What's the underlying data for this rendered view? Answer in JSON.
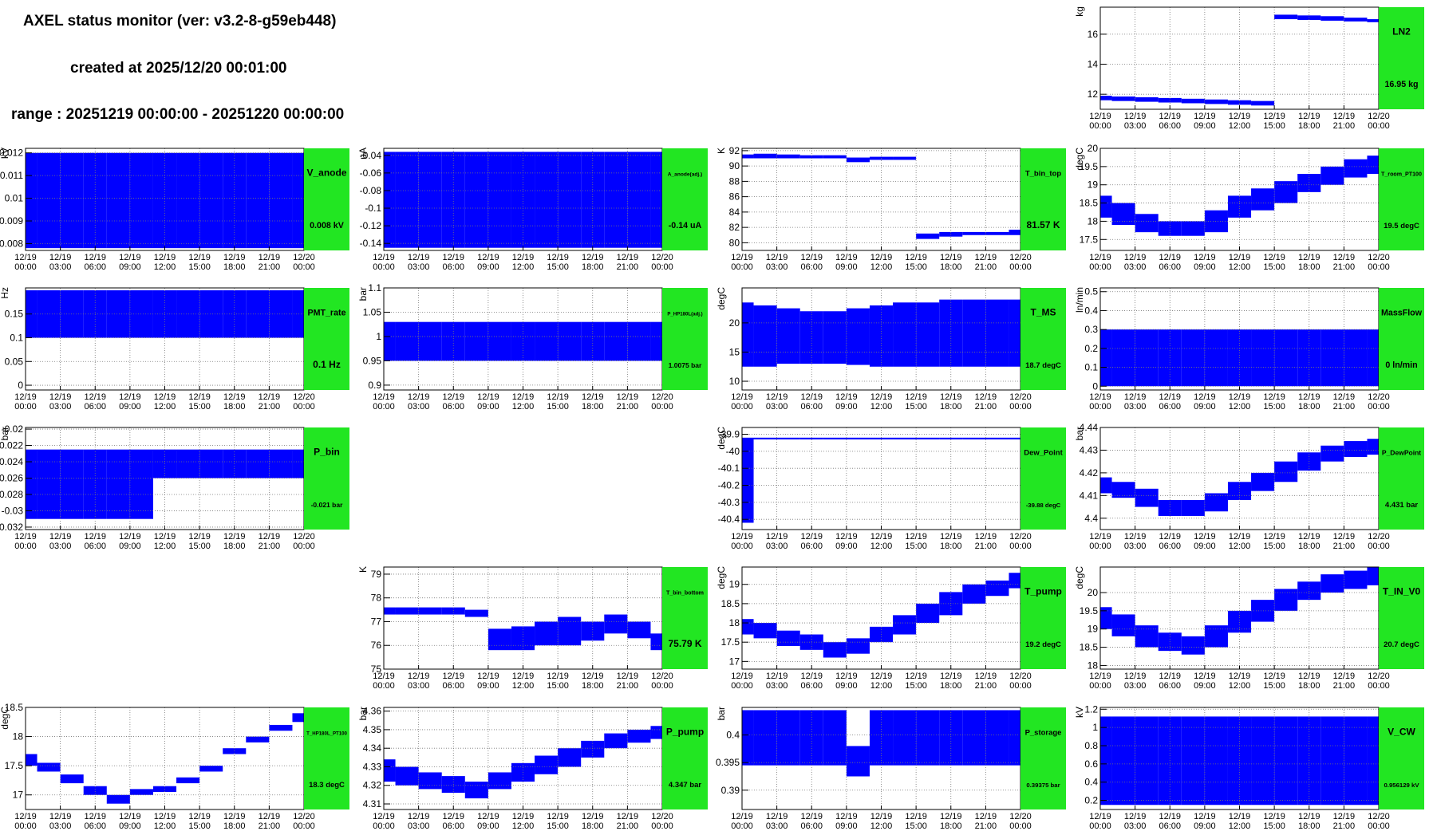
{
  "header": {
    "title": "AXEL status monitor (ver: v3.2-8-g59eb448)",
    "created": "created at 2025/12/20 00:01:00",
    "range": "range : 20251219 00:00:00 - 20251220 00:00:00"
  },
  "time_axis": {
    "xlim": [
      0,
      24
    ],
    "xticks": [
      {
        "value": 0,
        "label": "12/19 00:00"
      },
      {
        "value": 3,
        "label": "12/19 03:00"
      },
      {
        "value": 6,
        "label": "12/19 06:00"
      },
      {
        "value": 9,
        "label": "12/19 09:00"
      },
      {
        "value": 12,
        "label": "12/19 12:00"
      },
      {
        "value": 15,
        "label": "12/19 15:00"
      },
      {
        "value": 18,
        "label": "12/19 18:00"
      },
      {
        "value": 21,
        "label": "12/19 21:00"
      },
      {
        "value": 24,
        "label": "12/20 00:00"
      }
    ]
  },
  "chart_data": [
    {
      "type": "band",
      "title": "LN2",
      "value_label": "16.95 kg",
      "unit": "kg",
      "color": "#0000ff",
      "ylim": [
        11,
        17.8
      ],
      "yticks": [
        12,
        14,
        16
      ],
      "grid": true,
      "x": [
        0,
        2,
        4,
        6,
        8,
        10,
        12,
        14,
        16,
        18,
        20,
        22,
        24
      ],
      "low": [
        11.6,
        11.55,
        11.5,
        11.45,
        11.4,
        11.35,
        11.3,
        11.25,
        17.0,
        16.95,
        16.9,
        16.85,
        16.8
      ],
      "high": [
        11.9,
        11.85,
        11.8,
        11.75,
        11.7,
        11.65,
        11.6,
        11.55,
        17.3,
        17.25,
        17.2,
        17.1,
        17.0
      ]
    },
    {
      "type": "band",
      "title": "V_anode",
      "value_label": "0.008 kV",
      "unit": "kV",
      "color": "#0000ff",
      "ylim": [
        0.0077,
        0.0122
      ],
      "yticks": [
        0.008,
        0.009,
        0.01,
        0.011,
        0.012
      ],
      "grid": true,
      "x": [
        0,
        2,
        4,
        6,
        8,
        10,
        12,
        14,
        16,
        18,
        20,
        22,
        24
      ],
      "low": [
        0.0078,
        0.0078,
        0.0078,
        0.0078,
        0.0078,
        0.0078,
        0.0078,
        0.0078,
        0.0078,
        0.0078,
        0.0078,
        0.0078,
        0.0078
      ],
      "high": [
        0.012,
        0.012,
        0.012,
        0.012,
        0.012,
        0.012,
        0.012,
        0.012,
        0.012,
        0.012,
        0.012,
        0.012,
        0.012
      ]
    },
    {
      "type": "band",
      "title": "A_anode(adj.)",
      "value_label": "-0.14 uA",
      "unit": "uA",
      "color": "#0000ff",
      "ylim": [
        -0.148,
        -0.032
      ],
      "yticks": [
        -0.14,
        -0.12,
        -0.1,
        -0.08,
        -0.06,
        -0.04
      ],
      "grid": true,
      "x": [
        0,
        2,
        4,
        6,
        8,
        10,
        12,
        14,
        16,
        18,
        20,
        22,
        24
      ],
      "low": [
        -0.145,
        -0.145,
        -0.145,
        -0.145,
        -0.145,
        -0.145,
        -0.145,
        -0.145,
        -0.145,
        -0.145,
        -0.145,
        -0.145,
        -0.145
      ],
      "high": [
        -0.036,
        -0.036,
        -0.036,
        -0.036,
        -0.036,
        -0.036,
        -0.036,
        -0.036,
        -0.036,
        -0.036,
        -0.036,
        -0.036,
        -0.036
      ]
    },
    {
      "type": "band",
      "title": "T_bin_top",
      "value_label": "81.57 K",
      "unit": "K",
      "color": "#0000ff",
      "ylim": [
        79,
        92.3
      ],
      "yticks": [
        80,
        82,
        84,
        86,
        88,
        90,
        92
      ],
      "grid": true,
      "x": [
        0,
        2,
        4,
        6,
        8,
        10,
        12,
        14,
        16,
        18,
        20,
        22,
        24
      ],
      "low": [
        91,
        91,
        91,
        91,
        91,
        90.5,
        90.8,
        90.8,
        80.5,
        80.8,
        81,
        81,
        81
      ],
      "high": [
        91.5,
        91.6,
        91.5,
        91.4,
        91.4,
        91.1,
        91.2,
        91.2,
        81.2,
        81.4,
        81.4,
        81.4,
        81.7
      ]
    },
    {
      "type": "band",
      "title": "T_room_PT100",
      "value_label": "19.5 degC",
      "unit": "degC",
      "color": "#0000ff",
      "ylim": [
        17.2,
        20
      ],
      "yticks": [
        17.5,
        18,
        18.5,
        19,
        19.5,
        20
      ],
      "grid": true,
      "x": [
        0,
        2,
        4,
        6,
        8,
        10,
        12,
        14,
        16,
        18,
        20,
        22,
        24
      ],
      "low": [
        18.1,
        17.9,
        17.7,
        17.6,
        17.6,
        17.7,
        18.1,
        18.3,
        18.5,
        18.8,
        19.0,
        19.2,
        19.3
      ],
      "high": [
        18.7,
        18.5,
        18.2,
        18.0,
        18.0,
        18.3,
        18.7,
        18.9,
        19.1,
        19.3,
        19.5,
        19.7,
        19.8
      ]
    },
    {
      "type": "band",
      "title": "PMT_rate",
      "value_label": "0.1 Hz",
      "unit": "Hz",
      "color": "#0000ff",
      "ylim": [
        -0.01,
        0.205
      ],
      "yticks": [
        0,
        0.05,
        0.1,
        0.15
      ],
      "grid": true,
      "x": [
        0,
        2,
        4,
        6,
        8,
        10,
        12,
        14,
        16,
        18,
        20,
        22,
        24
      ],
      "low": [
        0.1,
        0.1,
        0.1,
        0.1,
        0.1,
        0.1,
        0.1,
        0.1,
        0.1,
        0.1,
        0.1,
        0.1,
        0.1
      ],
      "high": [
        0.2,
        0.2,
        0.2,
        0.2,
        0.2,
        0.2,
        0.2,
        0.2,
        0.2,
        0.2,
        0.2,
        0.2,
        0.2
      ]
    },
    {
      "type": "band",
      "title": "P_HP180L(adj.)",
      "value_label": "1.0075 bar",
      "unit": "bar",
      "color": "#0000ff",
      "ylim": [
        0.89,
        1.1
      ],
      "yticks": [
        0.9,
        0.95,
        1,
        1.05,
        1.1
      ],
      "grid": true,
      "x": [
        0,
        2,
        4,
        6,
        8,
        10,
        12,
        14,
        16,
        18,
        20,
        22,
        24
      ],
      "low": [
        0.95,
        0.95,
        0.95,
        0.95,
        0.95,
        0.95,
        0.95,
        0.95,
        0.95,
        0.95,
        0.95,
        0.95,
        0.95
      ],
      "high": [
        1.03,
        1.03,
        1.03,
        1.03,
        1.03,
        1.03,
        1.03,
        1.03,
        1.03,
        1.03,
        1.03,
        1.03,
        1.03
      ]
    },
    {
      "type": "band",
      "title": "T_MS",
      "value_label": "18.7 degC",
      "unit": "degC",
      "color": "#0000ff",
      "ylim": [
        8.5,
        26
      ],
      "yticks": [
        10,
        15,
        20
      ],
      "grid": true,
      "x": [
        0,
        2,
        4,
        6,
        8,
        10,
        12,
        14,
        16,
        18,
        20,
        22,
        24
      ],
      "low": [
        12.5,
        12.5,
        13,
        13,
        13,
        12.8,
        12.5,
        12.5,
        12.5,
        12.5,
        12.5,
        12.5,
        12.5
      ],
      "high": [
        23.5,
        23,
        22.5,
        22,
        22,
        22.5,
        23,
        23.5,
        23.5,
        24,
        24,
        24,
        24
      ]
    },
    {
      "type": "band",
      "title": "MassFlow",
      "value_label": "0 ln/min",
      "unit": "ln/min",
      "color": "#0000ff",
      "ylim": [
        -0.02,
        0.52
      ],
      "yticks": [
        0,
        0.1,
        0.2,
        0.3,
        0.4,
        0.5
      ],
      "grid": true,
      "x": [
        0,
        2,
        4,
        6,
        8,
        10,
        12,
        14,
        16,
        18,
        20,
        22,
        24
      ],
      "low": [
        0,
        0,
        0,
        0,
        0,
        0,
        0,
        0,
        0,
        0,
        0,
        0,
        0
      ],
      "high": [
        0.3,
        0.3,
        0.3,
        0.3,
        0.3,
        0.3,
        0.3,
        0.3,
        0.3,
        0.3,
        0.3,
        0.3,
        0.3
      ]
    },
    {
      "type": "band",
      "title": "P_bin",
      "value_label": "-0.021 bar",
      "unit": "bar",
      "color": "#0000ff",
      "ylim": [
        -0.0323,
        -0.0198
      ],
      "yticks": [
        -0.032,
        -0.03,
        -0.028,
        -0.026,
        -0.024,
        -0.022,
        -0.02
      ],
      "grid": true,
      "x": [
        0,
        2,
        4,
        6,
        8,
        10,
        12,
        14,
        16,
        18,
        20,
        22,
        24
      ],
      "low": [
        -0.031,
        -0.031,
        -0.031,
        -0.031,
        -0.031,
        -0.031,
        -0.026,
        -0.026,
        -0.026,
        -0.026,
        -0.026,
        -0.026,
        -0.026
      ],
      "high": [
        -0.0225,
        -0.0225,
        -0.0225,
        -0.0225,
        -0.0225,
        -0.0225,
        -0.0225,
        -0.0225,
        -0.0225,
        -0.0225,
        -0.0225,
        -0.0225,
        -0.0225
      ]
    },
    {
      "type": "band",
      "title": "Dew_Point",
      "value_label": "-39.88 degC",
      "unit": "degC",
      "color": "#0000ff",
      "ylim": [
        -40.46,
        -39.86
      ],
      "yticks": [
        -40.4,
        -40.3,
        -40.2,
        -40.1,
        -40,
        -39.9
      ],
      "grid": true,
      "x": [
        0,
        2,
        4,
        6,
        8,
        10,
        12,
        14,
        16,
        18,
        20,
        22,
        24
      ],
      "low": [
        -40.42,
        -39.93,
        -39.93,
        -39.93,
        -39.93,
        -39.93,
        -39.93,
        -39.93,
        -39.93,
        -39.93,
        -39.93,
        -39.93,
        -39.93
      ],
      "high": [
        -39.92,
        -39.92,
        -39.92,
        -39.92,
        -39.92,
        -39.92,
        -39.92,
        -39.92,
        -39.92,
        -39.92,
        -39.92,
        -39.92,
        -39.92
      ]
    },
    {
      "type": "band",
      "title": "P_DewPoint",
      "value_label": "4.431 bar",
      "unit": "bar",
      "color": "#0000ff",
      "ylim": [
        4.395,
        4.44
      ],
      "yticks": [
        4.4,
        4.41,
        4.42,
        4.43,
        4.44
      ],
      "grid": true,
      "x": [
        0,
        2,
        4,
        6,
        8,
        10,
        12,
        14,
        16,
        18,
        20,
        22,
        24
      ],
      "low": [
        4.411,
        4.409,
        4.405,
        4.401,
        4.401,
        4.403,
        4.408,
        4.412,
        4.416,
        4.421,
        4.425,
        4.427,
        4.428
      ],
      "high": [
        4.418,
        4.416,
        4.413,
        4.408,
        4.408,
        4.411,
        4.416,
        4.42,
        4.425,
        4.429,
        4.432,
        4.434,
        4.435
      ]
    },
    {
      "type": "band",
      "title": "T_bin_bottom",
      "value_label": "75.79 K",
      "unit": "K",
      "color": "#0000ff",
      "ylim": [
        75,
        79.3
      ],
      "yticks": [
        75,
        76,
        77,
        78,
        79
      ],
      "grid": true,
      "x": [
        0,
        2,
        4,
        6,
        8,
        10,
        12,
        14,
        16,
        18,
        20,
        22,
        24
      ],
      "low": [
        77.3,
        77.3,
        77.3,
        77.3,
        77.2,
        75.8,
        75.8,
        76.0,
        76.0,
        76.2,
        76.5,
        76.3,
        75.8
      ],
      "high": [
        77.6,
        77.6,
        77.6,
        77.6,
        77.5,
        76.7,
        76.8,
        77.0,
        77.2,
        77.0,
        77.3,
        77.0,
        76.5
      ]
    },
    {
      "type": "band",
      "title": "T_pump",
      "value_label": "19.2 degC",
      "unit": "degC",
      "color": "#0000ff",
      "ylim": [
        16.8,
        19.45
      ],
      "yticks": [
        17,
        17.5,
        18,
        18.5,
        19
      ],
      "grid": true,
      "x": [
        0,
        2,
        4,
        6,
        8,
        10,
        12,
        14,
        16,
        18,
        20,
        22,
        24
      ],
      "low": [
        17.7,
        17.6,
        17.4,
        17.3,
        17.1,
        17.2,
        17.5,
        17.7,
        18.0,
        18.2,
        18.5,
        18.7,
        18.9
      ],
      "high": [
        18.1,
        18.0,
        17.8,
        17.7,
        17.5,
        17.6,
        17.9,
        18.2,
        18.5,
        18.8,
        19.0,
        19.1,
        19.3
      ]
    },
    {
      "type": "band",
      "title": "T_IN_V0",
      "value_label": "20.7 degC",
      "unit": "degC",
      "color": "#0000ff",
      "ylim": [
        17.9,
        20.7
      ],
      "yticks": [
        18,
        18.5,
        19,
        19.5,
        20
      ],
      "grid": true,
      "x": [
        0,
        2,
        4,
        6,
        8,
        10,
        12,
        14,
        16,
        18,
        20,
        22,
        24
      ],
      "low": [
        19.0,
        18.8,
        18.5,
        18.4,
        18.3,
        18.5,
        18.9,
        19.2,
        19.5,
        19.8,
        20.0,
        20.1,
        20.2
      ],
      "high": [
        19.6,
        19.4,
        19.1,
        18.9,
        18.8,
        19.1,
        19.5,
        19.8,
        20.1,
        20.3,
        20.5,
        20.6,
        20.7
      ]
    },
    {
      "type": "band",
      "title": "T_HP180L_PT100",
      "value_label": "18.3 degC",
      "unit": "degC",
      "color": "#0000ff",
      "ylim": [
        16.75,
        18.5
      ],
      "yticks": [
        17,
        17.5,
        18,
        18.5
      ],
      "grid": true,
      "x": [
        0,
        2,
        4,
        6,
        8,
        10,
        12,
        14,
        16,
        18,
        20,
        22,
        24
      ],
      "low": [
        17.5,
        17.4,
        17.2,
        17.0,
        16.85,
        17.0,
        17.05,
        17.2,
        17.4,
        17.7,
        17.9,
        18.1,
        18.25
      ],
      "high": [
        17.7,
        17.55,
        17.35,
        17.15,
        17.0,
        17.1,
        17.15,
        17.3,
        17.5,
        17.8,
        18.0,
        18.2,
        18.4
      ]
    },
    {
      "type": "band",
      "title": "P_pump",
      "value_label": "4.347 bar",
      "unit": "bar",
      "color": "#0000ff",
      "ylim": [
        4.307,
        4.362
      ],
      "yticks": [
        4.31,
        4.32,
        4.33,
        4.34,
        4.35,
        4.36
      ],
      "grid": true,
      "x": [
        0,
        2,
        4,
        6,
        8,
        10,
        12,
        14,
        16,
        18,
        20,
        22,
        24
      ],
      "low": [
        4.322,
        4.32,
        4.318,
        4.316,
        4.313,
        4.318,
        4.322,
        4.326,
        4.33,
        4.335,
        4.34,
        4.343,
        4.345
      ],
      "high": [
        4.334,
        4.33,
        4.327,
        4.325,
        4.322,
        4.327,
        4.332,
        4.336,
        4.34,
        4.344,
        4.348,
        4.35,
        4.352
      ]
    },
    {
      "type": "band",
      "title": "P_storage",
      "value_label": "0.39375 bar",
      "unit": "bar",
      "color": "#0000ff",
      "ylim": [
        0.3865,
        0.405
      ],
      "yticks": [
        0.39,
        0.395,
        0.4
      ],
      "grid": true,
      "x": [
        0,
        2,
        4,
        6,
        8,
        10,
        12,
        14,
        16,
        18,
        20,
        22,
        24
      ],
      "low": [
        0.3945,
        0.3945,
        0.3945,
        0.3945,
        0.3945,
        0.3925,
        0.3945,
        0.3945,
        0.3945,
        0.3945,
        0.3945,
        0.3945,
        0.3945
      ],
      "high": [
        0.4045,
        0.4045,
        0.4045,
        0.4045,
        0.4045,
        0.398,
        0.4045,
        0.4045,
        0.4045,
        0.4045,
        0.4045,
        0.4045,
        0.4045
      ]
    },
    {
      "type": "band",
      "title": "V_CW",
      "value_label": "0.956129 kV",
      "unit": "kV",
      "color": "#0000ff",
      "ylim": [
        0.1,
        1.22
      ],
      "yticks": [
        0.2,
        0.4,
        0.6,
        0.8,
        1,
        1.2
      ],
      "grid": true,
      "x": [
        0,
        2,
        4,
        6,
        8,
        10,
        12,
        14,
        16,
        18,
        20,
        22,
        24
      ],
      "low": [
        0.15,
        0.15,
        0.15,
        0.15,
        0.15,
        0.15,
        0.15,
        0.15,
        0.15,
        0.15,
        0.15,
        0.15,
        0.15
      ],
      "high": [
        1.12,
        1.12,
        1.12,
        1.12,
        1.12,
        1.12,
        1.12,
        1.12,
        1.12,
        1.12,
        1.12,
        1.12,
        1.12
      ]
    }
  ]
}
